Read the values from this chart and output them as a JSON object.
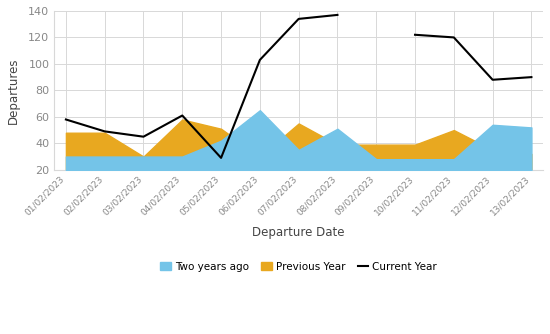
{
  "dates": [
    "01/02/2023",
    "02/02/2023",
    "03/02/2023",
    "04/02/2023",
    "05/02/2023",
    "06/02/2023",
    "07/02/2023",
    "08/02/2023",
    "09/02/2023",
    "10/02/2023",
    "11/02/2023",
    "12/02/2023",
    "13/02/2023"
  ],
  "two_years_ago": [
    30,
    30,
    30,
    30,
    42,
    65,
    35,
    51,
    28,
    28,
    28,
    54,
    52
  ],
  "previous_year": [
    48,
    48,
    30,
    58,
    51,
    30,
    55,
    39,
    39,
    39,
    50,
    35,
    32
  ],
  "current_year": [
    58,
    49,
    45,
    61,
    29,
    103,
    134,
    137,
    null,
    122,
    120,
    88,
    90
  ],
  "ylim": [
    20,
    140
  ],
  "yticks": [
    20,
    40,
    60,
    80,
    100,
    120,
    140
  ],
  "xlabel": "Departure Date",
  "ylabel": "Departures",
  "color_two_years": "#74C4E8",
  "color_prev_year": "#E8A820",
  "color_current": "#000000",
  "legend_labels": [
    "Two years ago",
    "Previous Year",
    "Current Year"
  ],
  "background_color": "#ffffff",
  "grid_color": "#d8d8d8"
}
